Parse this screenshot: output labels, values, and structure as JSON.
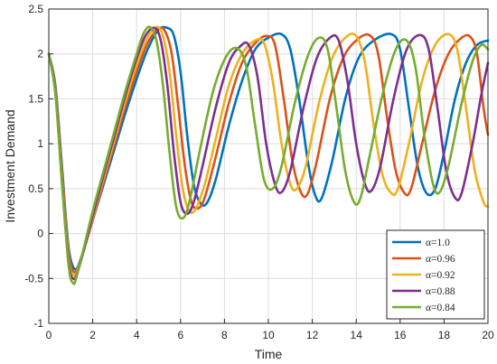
{
  "chart_data": {
    "type": "line",
    "title": "",
    "xlabel": "Time",
    "ylabel": "Investment Demand",
    "xlim": [
      0,
      20
    ],
    "ylim": [
      -1,
      2.5
    ],
    "xticks": [
      "0",
      "2",
      "4",
      "6",
      "8",
      "10",
      "12",
      "14",
      "16",
      "18",
      "20"
    ],
    "yticks": [
      "-1",
      "-0.5",
      "0",
      "0.5",
      "1",
      "1.5",
      "2",
      "2.5"
    ],
    "grid": true,
    "legend_position": "bottom-right",
    "series": [
      {
        "name": "α=1.0",
        "color": "#0072BD",
        "points": [
          [
            0,
            2.0
          ],
          [
            0.3,
            1.65
          ],
          [
            0.6,
            0.75
          ],
          [
            0.9,
            -0.15
          ],
          [
            1.2,
            -0.4
          ],
          [
            1.5,
            -0.25
          ],
          [
            2.0,
            0.15
          ],
          [
            2.5,
            0.55
          ],
          [
            3.0,
            0.95
          ],
          [
            3.5,
            1.35
          ],
          [
            4.0,
            1.72
          ],
          [
            4.5,
            2.05
          ],
          [
            5.0,
            2.27
          ],
          [
            5.4,
            2.29
          ],
          [
            5.7,
            2.2
          ],
          [
            6.0,
            1.8
          ],
          [
            6.3,
            1.1
          ],
          [
            6.6,
            0.55
          ],
          [
            6.9,
            0.34
          ],
          [
            7.2,
            0.34
          ],
          [
            7.6,
            0.6
          ],
          [
            8.2,
            1.2
          ],
          [
            8.8,
            1.7
          ],
          [
            9.4,
            2.05
          ],
          [
            10.0,
            2.18
          ],
          [
            10.6,
            2.22
          ],
          [
            11.0,
            2.05
          ],
          [
            11.4,
            1.5
          ],
          [
            11.8,
            0.8
          ],
          [
            12.1,
            0.45
          ],
          [
            12.4,
            0.38
          ],
          [
            12.9,
            0.8
          ],
          [
            13.5,
            1.5
          ],
          [
            14.1,
            1.95
          ],
          [
            14.8,
            2.15
          ],
          [
            15.6,
            2.22
          ],
          [
            16.0,
            2.05
          ],
          [
            16.4,
            1.4
          ],
          [
            16.8,
            0.75
          ],
          [
            17.2,
            0.45
          ],
          [
            17.6,
            0.5
          ],
          [
            18.0,
            0.9
          ],
          [
            18.5,
            1.5
          ],
          [
            19.0,
            1.9
          ],
          [
            19.5,
            2.1
          ],
          [
            20.0,
            2.15
          ]
        ]
      },
      {
        "name": "α=0.96",
        "color": "#D95319",
        "points": [
          [
            0,
            2.0
          ],
          [
            0.3,
            1.62
          ],
          [
            0.6,
            0.7
          ],
          [
            0.9,
            -0.2
          ],
          [
            1.15,
            -0.43
          ],
          [
            1.45,
            -0.3
          ],
          [
            2.0,
            0.15
          ],
          [
            2.5,
            0.58
          ],
          [
            3.0,
            1.0
          ],
          [
            3.5,
            1.42
          ],
          [
            4.0,
            1.8
          ],
          [
            4.5,
            2.12
          ],
          [
            5.0,
            2.28
          ],
          [
            5.3,
            2.25
          ],
          [
            5.6,
            2.0
          ],
          [
            5.9,
            1.4
          ],
          [
            6.2,
            0.75
          ],
          [
            6.5,
            0.35
          ],
          [
            6.8,
            0.28
          ],
          [
            7.1,
            0.4
          ],
          [
            7.6,
            0.85
          ],
          [
            8.2,
            1.45
          ],
          [
            8.8,
            1.9
          ],
          [
            9.4,
            2.12
          ],
          [
            9.9,
            2.2
          ],
          [
            10.3,
            2.1
          ],
          [
            10.7,
            1.5
          ],
          [
            11.1,
            0.8
          ],
          [
            11.5,
            0.45
          ],
          [
            11.8,
            0.45
          ],
          [
            12.2,
            0.8
          ],
          [
            12.8,
            1.5
          ],
          [
            13.4,
            1.95
          ],
          [
            14.0,
            2.15
          ],
          [
            14.6,
            2.21
          ],
          [
            15.0,
            2.0
          ],
          [
            15.4,
            1.3
          ],
          [
            15.8,
            0.7
          ],
          [
            16.2,
            0.45
          ],
          [
            16.5,
            0.5
          ],
          [
            17.0,
            1.0
          ],
          [
            17.6,
            1.6
          ],
          [
            18.2,
            2.0
          ],
          [
            18.8,
            2.18
          ],
          [
            19.2,
            2.19
          ],
          [
            19.5,
            2.0
          ],
          [
            19.8,
            1.4
          ],
          [
            20.0,
            1.1
          ]
        ]
      },
      {
        "name": "α=0.92",
        "color": "#EDB120",
        "points": [
          [
            0,
            2.0
          ],
          [
            0.3,
            1.6
          ],
          [
            0.6,
            0.65
          ],
          [
            0.9,
            -0.25
          ],
          [
            1.1,
            -0.46
          ],
          [
            1.4,
            -0.35
          ],
          [
            2.0,
            0.18
          ],
          [
            2.5,
            0.62
          ],
          [
            3.0,
            1.05
          ],
          [
            3.5,
            1.48
          ],
          [
            4.0,
            1.88
          ],
          [
            4.5,
            2.18
          ],
          [
            4.9,
            2.3
          ],
          [
            5.2,
            2.2
          ],
          [
            5.5,
            1.8
          ],
          [
            5.8,
            1.1
          ],
          [
            6.1,
            0.5
          ],
          [
            6.4,
            0.25
          ],
          [
            6.7,
            0.28
          ],
          [
            7.1,
            0.55
          ],
          [
            7.6,
            1.05
          ],
          [
            8.2,
            1.65
          ],
          [
            8.8,
            2.0
          ],
          [
            9.4,
            2.15
          ],
          [
            9.8,
            2.12
          ],
          [
            10.2,
            1.7
          ],
          [
            10.6,
            1.0
          ],
          [
            11.0,
            0.55
          ],
          [
            11.3,
            0.5
          ],
          [
            11.7,
            0.75
          ],
          [
            12.3,
            1.45
          ],
          [
            12.9,
            1.95
          ],
          [
            13.5,
            2.18
          ],
          [
            14.0,
            2.2
          ],
          [
            14.4,
            1.9
          ],
          [
            14.8,
            1.2
          ],
          [
            15.2,
            0.65
          ],
          [
            15.6,
            0.45
          ],
          [
            15.9,
            0.5
          ],
          [
            16.4,
            1.0
          ],
          [
            17.0,
            1.7
          ],
          [
            17.6,
            2.1
          ],
          [
            18.2,
            2.22
          ],
          [
            18.6,
            2.05
          ],
          [
            19.0,
            1.4
          ],
          [
            19.4,
            0.7
          ],
          [
            19.8,
            0.35
          ],
          [
            20.0,
            0.3
          ]
        ]
      },
      {
        "name": "α=0.88",
        "color": "#7E2F8E",
        "points": [
          [
            0,
            2.0
          ],
          [
            0.3,
            1.58
          ],
          [
            0.6,
            0.6
          ],
          [
            0.9,
            -0.3
          ],
          [
            1.1,
            -0.5
          ],
          [
            1.35,
            -0.4
          ],
          [
            2.0,
            0.2
          ],
          [
            2.5,
            0.66
          ],
          [
            3.0,
            1.1
          ],
          [
            3.5,
            1.55
          ],
          [
            4.0,
            1.95
          ],
          [
            4.4,
            2.2
          ],
          [
            4.8,
            2.29
          ],
          [
            5.1,
            2.15
          ],
          [
            5.4,
            1.65
          ],
          [
            5.7,
            0.9
          ],
          [
            6.0,
            0.35
          ],
          [
            6.3,
            0.22
          ],
          [
            6.6,
            0.35
          ],
          [
            7.0,
            0.75
          ],
          [
            7.6,
            1.4
          ],
          [
            8.2,
            1.9
          ],
          [
            8.7,
            2.08
          ],
          [
            9.1,
            2.1
          ],
          [
            9.5,
            1.75
          ],
          [
            9.9,
            1.0
          ],
          [
            10.3,
            0.55
          ],
          [
            10.6,
            0.46
          ],
          [
            11.0,
            0.7
          ],
          [
            11.6,
            1.4
          ],
          [
            12.2,
            1.95
          ],
          [
            12.8,
            2.18
          ],
          [
            13.2,
            2.15
          ],
          [
            13.6,
            1.7
          ],
          [
            14.0,
            1.0
          ],
          [
            14.4,
            0.55
          ],
          [
            14.7,
            0.48
          ],
          [
            15.1,
            0.75
          ],
          [
            15.7,
            1.5
          ],
          [
            16.3,
            2.05
          ],
          [
            16.9,
            2.21
          ],
          [
            17.3,
            2.05
          ],
          [
            17.7,
            1.4
          ],
          [
            18.1,
            0.7
          ],
          [
            18.5,
            0.4
          ],
          [
            18.8,
            0.45
          ],
          [
            19.3,
            1.0
          ],
          [
            19.7,
            1.55
          ],
          [
            20.0,
            1.9
          ]
        ]
      },
      {
        "name": "α=0.84",
        "color": "#77AC30",
        "points": [
          [
            0,
            2.0
          ],
          [
            0.3,
            1.55
          ],
          [
            0.6,
            0.55
          ],
          [
            0.9,
            -0.35
          ],
          [
            1.1,
            -0.55
          ],
          [
            1.3,
            -0.45
          ],
          [
            2.0,
            0.25
          ],
          [
            2.5,
            0.7
          ],
          [
            3.0,
            1.15
          ],
          [
            3.5,
            1.6
          ],
          [
            4.0,
            2.0
          ],
          [
            4.3,
            2.22
          ],
          [
            4.6,
            2.3
          ],
          [
            4.9,
            2.15
          ],
          [
            5.2,
            1.65
          ],
          [
            5.5,
            0.9
          ],
          [
            5.8,
            0.3
          ],
          [
            6.1,
            0.17
          ],
          [
            6.4,
            0.35
          ],
          [
            6.9,
            0.95
          ],
          [
            7.5,
            1.6
          ],
          [
            8.1,
            1.98
          ],
          [
            8.6,
            2.06
          ],
          [
            9.0,
            1.85
          ],
          [
            9.4,
            1.2
          ],
          [
            9.8,
            0.6
          ],
          [
            10.2,
            0.5
          ],
          [
            10.6,
            0.75
          ],
          [
            11.2,
            1.45
          ],
          [
            11.8,
            1.98
          ],
          [
            12.3,
            2.18
          ],
          [
            12.7,
            2.05
          ],
          [
            13.1,
            1.4
          ],
          [
            13.5,
            0.7
          ],
          [
            13.9,
            0.35
          ],
          [
            14.2,
            0.4
          ],
          [
            14.6,
            0.85
          ],
          [
            15.2,
            1.55
          ],
          [
            15.8,
            2.05
          ],
          [
            16.3,
            2.15
          ],
          [
            16.7,
            1.85
          ],
          [
            17.1,
            1.1
          ],
          [
            17.5,
            0.55
          ],
          [
            17.8,
            0.46
          ],
          [
            18.2,
            0.75
          ],
          [
            18.8,
            1.45
          ],
          [
            19.3,
            1.92
          ],
          [
            19.7,
            2.1
          ],
          [
            20.0,
            2.05
          ]
        ]
      }
    ]
  }
}
